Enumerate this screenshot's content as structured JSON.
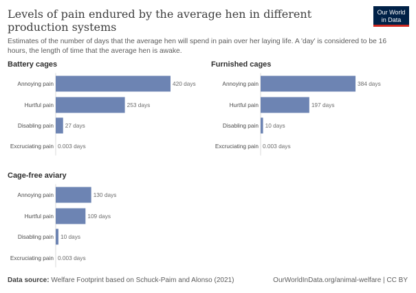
{
  "header": {
    "title": "Levels of pain endured by the average hen in different production systems",
    "subtitle": "Estimates of the number of days that the average hen will spend in pain over her laying life. A 'day' is considered to be 16 hours, the length of time that the average hen is awake.",
    "logo_line1": "Our World",
    "logo_line2": "in Data"
  },
  "chart_data": {
    "type": "bar",
    "orientation": "horizontal",
    "xlim": [
      0,
      420
    ],
    "panels": [
      {
        "title": "Battery cages",
        "categories": [
          "Annoying pain",
          "Hurtful pain",
          "Disabling pain",
          "Excruciating pain"
        ],
        "values": [
          420,
          253,
          27,
          0.003
        ],
        "labels": [
          "420 days",
          "253 days",
          "27 days",
          "0.003 days"
        ]
      },
      {
        "title": "Furnished cages",
        "categories": [
          "Annoying pain",
          "Hurtful pain",
          "Disabling pain",
          "Excruciating pain"
        ],
        "values": [
          384,
          197,
          10,
          0.003
        ],
        "labels": [
          "384 days",
          "197 days",
          "10 days",
          "0.003 days"
        ]
      },
      {
        "title": "Cage-free aviary",
        "categories": [
          "Annoying pain",
          "Hurtful pain",
          "Disabling pain",
          "Excruciating pain"
        ],
        "values": [
          130,
          109,
          10,
          0.003
        ],
        "labels": [
          "130 days",
          "109 days",
          "10 days",
          "0.003 days"
        ]
      }
    ],
    "bar_color": "#6d84b3"
  },
  "footer": {
    "source_label": "Data source:",
    "source_text": " Welfare Footprint based on Schuck-Paim and Alonso (2021)",
    "credit": "OurWorldInData.org/animal-welfare | CC BY"
  }
}
